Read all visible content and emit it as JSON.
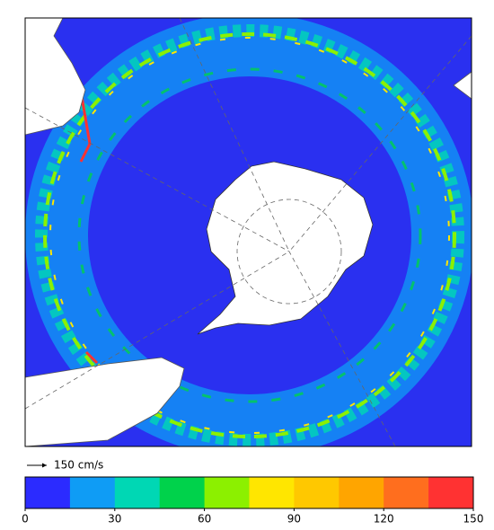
{
  "scale_arrow": {
    "label": "150 cm/s"
  },
  "colorbar": {
    "lim": [
      0,
      150
    ],
    "ticks": [
      0,
      30,
      60,
      90,
      120,
      150
    ],
    "colors": [
      "#2b2bff",
      "#0f9cf5",
      "#00d7b4",
      "#00d24b",
      "#8cf000",
      "#ffe600",
      "#ffc800",
      "#ffa500",
      "#ff6e1e",
      "#ff3232"
    ]
  }
}
